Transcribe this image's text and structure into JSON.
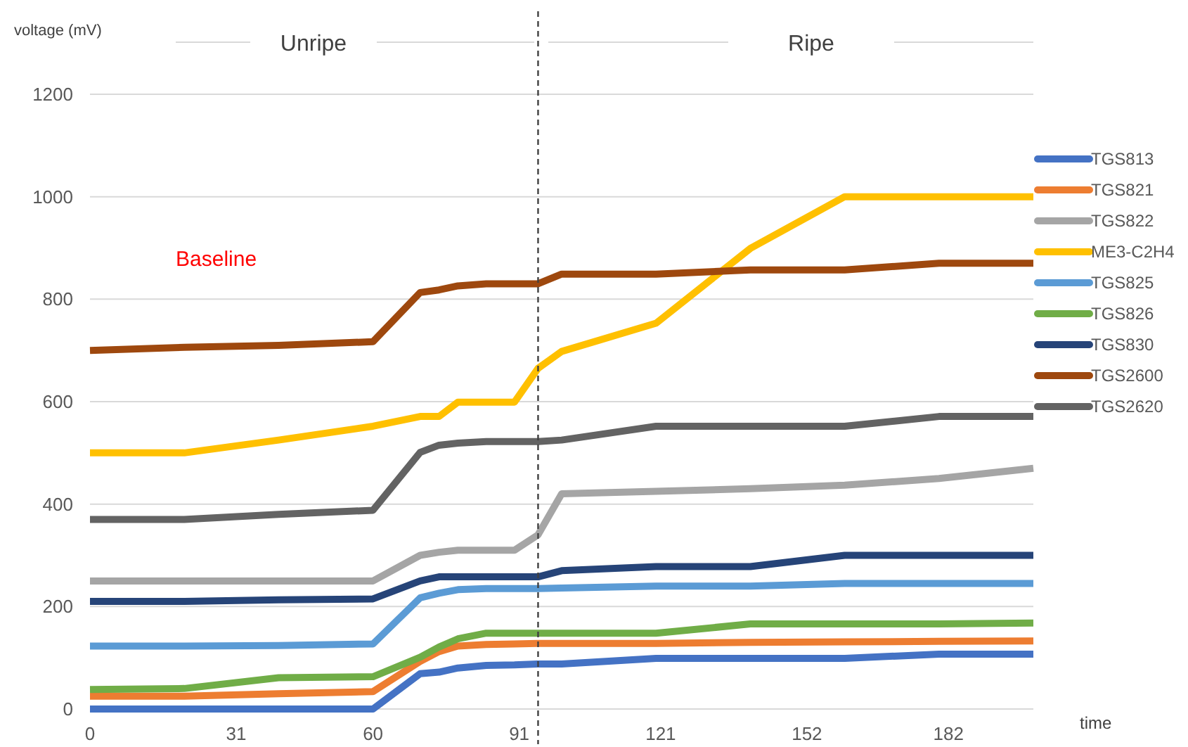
{
  "chart_data": {
    "type": "line",
    "xlabel": "time",
    "ylabel": "voltage (mV)",
    "x": [
      0,
      20,
      40,
      60,
      70,
      74,
      78,
      84,
      90,
      95,
      100,
      120,
      140,
      160,
      180,
      200
    ],
    "xlim": [
      0,
      200
    ],
    "xticks": [
      0,
      31,
      60,
      91,
      121,
      152,
      182
    ],
    "ylim": [
      0,
      1200
    ],
    "yticks": [
      0,
      200,
      400,
      600,
      800,
      1000,
      1200
    ],
    "grid": "y",
    "legend": "right",
    "marker": "none",
    "line_style": "solid",
    "series": [
      {
        "name": "TGS813",
        "color": "#4472c4",
        "values": [
          0,
          0,
          0,
          0,
          69,
          72,
          80,
          85,
          86,
          88,
          88,
          99,
          99,
          99,
          107,
          107
        ]
      },
      {
        "name": "TGS821",
        "color": "#ed7d31",
        "values": [
          25,
          25,
          30,
          34,
          93,
          112,
          123,
          126,
          127,
          128,
          128,
          128,
          130,
          131,
          132,
          133
        ]
      },
      {
        "name": "TGS822",
        "color": "#a5a5a5",
        "values": [
          250,
          250,
          250,
          250,
          300,
          306,
          310,
          310,
          310,
          340,
          420,
          425,
          430,
          437,
          450,
          470
        ]
      },
      {
        "name": "ME3-C2H4",
        "color": "#ffc000",
        "values": [
          500,
          500,
          525,
          552,
          571,
          571,
          599,
          599,
          599,
          665,
          698,
          753,
          899,
          1000,
          1000,
          1000
        ]
      },
      {
        "name": "TGS825",
        "color": "#5b9bd5",
        "values": [
          123,
          123,
          124,
          127,
          217,
          226,
          233,
          235,
          235,
          235,
          236,
          240,
          240,
          245,
          245,
          245
        ]
      },
      {
        "name": "TGS826",
        "color": "#70ad47",
        "values": [
          38,
          40,
          61,
          63,
          101,
          121,
          137,
          148,
          148,
          148,
          148,
          148,
          166,
          166,
          166,
          168
        ]
      },
      {
        "name": "TGS830",
        "color": "#264478",
        "values": [
          210,
          210,
          213,
          215,
          250,
          258,
          258,
          258,
          258,
          258,
          270,
          278,
          278,
          300,
          300,
          300
        ]
      },
      {
        "name": "TGS2600",
        "color": "#9e480e",
        "values": [
          700,
          706,
          710,
          717,
          813,
          818,
          826,
          830,
          830,
          830,
          849,
          849,
          857,
          857,
          870,
          870
        ]
      },
      {
        "name": "TGS2620",
        "color": "#636363",
        "values": [
          370,
          370,
          380,
          388,
          501,
          515,
          519,
          522,
          522,
          522,
          525,
          552,
          552,
          552,
          571,
          571
        ]
      }
    ],
    "ref_lines": [
      {
        "axis": "x",
        "value": 95,
        "line_style": "dashed",
        "color": "#404040"
      }
    ],
    "annotations": [
      "Unripe",
      "Ripe",
      "Baseline"
    ]
  }
}
